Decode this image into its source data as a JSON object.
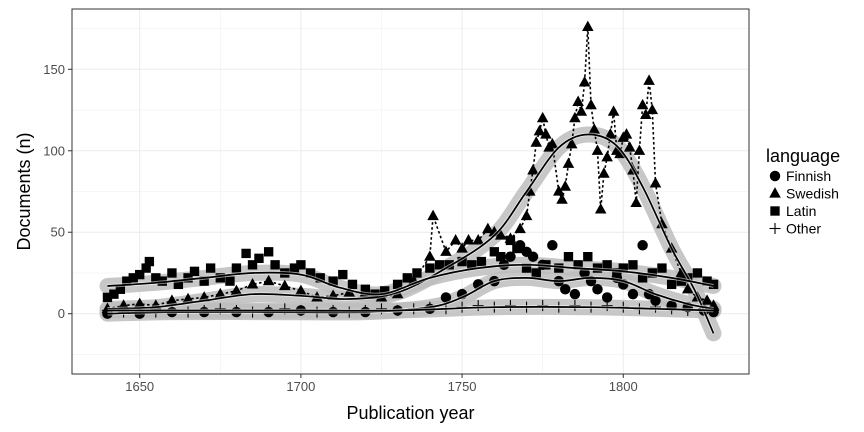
{
  "chart_data": {
    "type": "scatter",
    "xlabel": "Publication year",
    "ylabel": "Documents (n)",
    "xlim": [
      1629,
      1839
    ],
    "ylim": [
      -37,
      187
    ],
    "xticks": [
      1650,
      1700,
      1750,
      1800
    ],
    "yticks": [
      0,
      50,
      100,
      150
    ],
    "grid": true,
    "legend": {
      "title": "language",
      "position": "right",
      "entries": [
        "Finnish",
        "Swedish",
        "Latin",
        "Other"
      ]
    },
    "series": [
      {
        "name": "Swedish",
        "marker": "triangle",
        "connected": true,
        "line_style": "dotted",
        "points": [
          [
            1640,
            3
          ],
          [
            1645,
            5
          ],
          [
            1650,
            6
          ],
          [
            1655,
            5
          ],
          [
            1660,
            8
          ],
          [
            1665,
            9
          ],
          [
            1670,
            10
          ],
          [
            1675,
            12
          ],
          [
            1680,
            14
          ],
          [
            1685,
            18
          ],
          [
            1690,
            20
          ],
          [
            1695,
            17
          ],
          [
            1700,
            14
          ],
          [
            1705,
            10
          ],
          [
            1710,
            11
          ],
          [
            1715,
            13
          ],
          [
            1720,
            13
          ],
          [
            1725,
            10
          ],
          [
            1730,
            12
          ],
          [
            1735,
            20
          ],
          [
            1740,
            35
          ],
          [
            1741,
            60
          ],
          [
            1745,
            38
          ],
          [
            1748,
            45
          ],
          [
            1750,
            40
          ],
          [
            1752,
            45
          ],
          [
            1755,
            45
          ],
          [
            1758,
            52
          ],
          [
            1760,
            50
          ],
          [
            1762,
            48
          ],
          [
            1765,
            46
          ],
          [
            1768,
            52
          ],
          [
            1770,
            60
          ],
          [
            1771,
            75
          ],
          [
            1772,
            88
          ],
          [
            1773,
            105
          ],
          [
            1774,
            112
          ],
          [
            1775,
            120
          ],
          [
            1776,
            110
          ],
          [
            1777,
            102
          ],
          [
            1778,
            104
          ],
          [
            1780,
            75
          ],
          [
            1781,
            70
          ],
          [
            1782,
            78
          ],
          [
            1783,
            92
          ],
          [
            1784,
            104
          ],
          [
            1785,
            120
          ],
          [
            1786,
            130
          ],
          [
            1787,
            124
          ],
          [
            1788,
            142
          ],
          [
            1789,
            176
          ],
          [
            1790,
            128
          ],
          [
            1791,
            113
          ],
          [
            1792,
            100
          ],
          [
            1793,
            64
          ],
          [
            1794,
            86
          ],
          [
            1795,
            96
          ],
          [
            1796,
            110
          ],
          [
            1797,
            124
          ],
          [
            1798,
            100
          ],
          [
            1799,
            98
          ],
          [
            1800,
            108
          ],
          [
            1801,
            110
          ],
          [
            1802,
            102
          ],
          [
            1803,
            88
          ],
          [
            1804,
            68
          ],
          [
            1805,
            100
          ],
          [
            1806,
            128
          ],
          [
            1807,
            122
          ],
          [
            1808,
            143
          ],
          [
            1809,
            125
          ],
          [
            1810,
            80
          ],
          [
            1812,
            55
          ],
          [
            1815,
            40
          ],
          [
            1818,
            25
          ],
          [
            1820,
            15
          ],
          [
            1823,
            10
          ],
          [
            1826,
            8
          ],
          [
            1828,
            5
          ]
        ]
      },
      {
        "name": "Latin",
        "marker": "square",
        "connected": false,
        "points": [
          [
            1640,
            10
          ],
          [
            1642,
            12
          ],
          [
            1644,
            15
          ],
          [
            1646,
            20
          ],
          [
            1648,
            22
          ],
          [
            1650,
            24
          ],
          [
            1652,
            28
          ],
          [
            1653,
            32
          ],
          [
            1655,
            22
          ],
          [
            1657,
            20
          ],
          [
            1660,
            25
          ],
          [
            1662,
            18
          ],
          [
            1665,
            22
          ],
          [
            1667,
            26
          ],
          [
            1670,
            20
          ],
          [
            1672,
            28
          ],
          [
            1675,
            22
          ],
          [
            1678,
            20
          ],
          [
            1680,
            28
          ],
          [
            1683,
            37
          ],
          [
            1685,
            30
          ],
          [
            1687,
            34
          ],
          [
            1690,
            38
          ],
          [
            1692,
            30
          ],
          [
            1695,
            25
          ],
          [
            1698,
            28
          ],
          [
            1700,
            30
          ],
          [
            1703,
            25
          ],
          [
            1706,
            22
          ],
          [
            1710,
            20
          ],
          [
            1713,
            24
          ],
          [
            1716,
            18
          ],
          [
            1720,
            15
          ],
          [
            1723,
            12
          ],
          [
            1726,
            14
          ],
          [
            1730,
            18
          ],
          [
            1733,
            22
          ],
          [
            1736,
            25
          ],
          [
            1740,
            28
          ],
          [
            1743,
            30
          ],
          [
            1746,
            30
          ],
          [
            1750,
            32
          ],
          [
            1753,
            30
          ],
          [
            1756,
            32
          ],
          [
            1760,
            38
          ],
          [
            1762,
            35
          ],
          [
            1765,
            45
          ],
          [
            1767,
            40
          ],
          [
            1770,
            28
          ],
          [
            1773,
            25
          ],
          [
            1776,
            30
          ],
          [
            1780,
            28
          ],
          [
            1783,
            35
          ],
          [
            1786,
            30
          ],
          [
            1789,
            35
          ],
          [
            1792,
            28
          ],
          [
            1795,
            30
          ],
          [
            1798,
            25
          ],
          [
            1800,
            28
          ],
          [
            1803,
            30
          ],
          [
            1806,
            22
          ],
          [
            1809,
            25
          ],
          [
            1812,
            28
          ],
          [
            1815,
            18
          ],
          [
            1818,
            20
          ],
          [
            1820,
            22
          ],
          [
            1823,
            25
          ],
          [
            1826,
            20
          ],
          [
            1828,
            18
          ]
        ]
      },
      {
        "name": "Finnish",
        "marker": "circle",
        "connected": false,
        "points": [
          [
            1640,
            0
          ],
          [
            1650,
            0
          ],
          [
            1660,
            1
          ],
          [
            1670,
            1
          ],
          [
            1680,
            1
          ],
          [
            1690,
            1
          ],
          [
            1700,
            2
          ],
          [
            1710,
            1
          ],
          [
            1720,
            1
          ],
          [
            1730,
            2
          ],
          [
            1740,
            3
          ],
          [
            1745,
            10
          ],
          [
            1750,
            12
          ],
          [
            1755,
            18
          ],
          [
            1760,
            20
          ],
          [
            1763,
            30
          ],
          [
            1765,
            35
          ],
          [
            1768,
            42
          ],
          [
            1770,
            38
          ],
          [
            1772,
            35
          ],
          [
            1775,
            30
          ],
          [
            1778,
            42
          ],
          [
            1780,
            20
          ],
          [
            1782,
            15
          ],
          [
            1785,
            12
          ],
          [
            1788,
            25
          ],
          [
            1790,
            20
          ],
          [
            1792,
            15
          ],
          [
            1795,
            10
          ],
          [
            1798,
            22
          ],
          [
            1800,
            18
          ],
          [
            1803,
            12
          ],
          [
            1806,
            42
          ],
          [
            1808,
            12
          ],
          [
            1810,
            8
          ],
          [
            1815,
            5
          ],
          [
            1820,
            4
          ],
          [
            1825,
            2
          ],
          [
            1828,
            1
          ]
        ]
      },
      {
        "name": "Other",
        "marker": "cross",
        "connected": false,
        "points": [
          [
            1640,
            2
          ],
          [
            1645,
            1
          ],
          [
            1650,
            2
          ],
          [
            1655,
            1
          ],
          [
            1660,
            2
          ],
          [
            1665,
            1
          ],
          [
            1670,
            2
          ],
          [
            1675,
            3
          ],
          [
            1680,
            2
          ],
          [
            1685,
            1
          ],
          [
            1690,
            2
          ],
          [
            1695,
            3
          ],
          [
            1700,
            2
          ],
          [
            1705,
            1
          ],
          [
            1710,
            2
          ],
          [
            1715,
            1
          ],
          [
            1720,
            2
          ],
          [
            1725,
            3
          ],
          [
            1730,
            2
          ],
          [
            1735,
            3
          ],
          [
            1740,
            4
          ],
          [
            1745,
            3
          ],
          [
            1750,
            4
          ],
          [
            1755,
            5
          ],
          [
            1760,
            4
          ],
          [
            1765,
            5
          ],
          [
            1770,
            4
          ],
          [
            1775,
            5
          ],
          [
            1780,
            4
          ],
          [
            1785,
            5
          ],
          [
            1790,
            4
          ],
          [
            1795,
            5
          ],
          [
            1800,
            4
          ],
          [
            1805,
            3
          ],
          [
            1810,
            4
          ],
          [
            1815,
            3
          ],
          [
            1820,
            2
          ],
          [
            1825,
            3
          ],
          [
            1828,
            2
          ]
        ]
      }
    ],
    "smooth_fits": [
      {
        "color": "#000000",
        "points": [
          [
            1640,
            3
          ],
          [
            1655,
            4
          ],
          [
            1670,
            8
          ],
          [
            1685,
            12
          ],
          [
            1700,
            11
          ],
          [
            1715,
            9
          ],
          [
            1730,
            13
          ],
          [
            1745,
            28
          ],
          [
            1760,
            48
          ],
          [
            1770,
            75
          ],
          [
            1780,
            102
          ],
          [
            1789,
            110
          ],
          [
            1798,
            103
          ],
          [
            1806,
            78
          ],
          [
            1815,
            40
          ],
          [
            1822,
            15
          ],
          [
            1828,
            -12
          ]
        ]
      },
      {
        "color": "#000000",
        "points": [
          [
            1640,
            17
          ],
          [
            1655,
            19
          ],
          [
            1670,
            22
          ],
          [
            1685,
            25
          ],
          [
            1700,
            24
          ],
          [
            1712,
            16
          ],
          [
            1725,
            12
          ],
          [
            1740,
            22
          ],
          [
            1755,
            28
          ],
          [
            1770,
            30
          ],
          [
            1785,
            28
          ],
          [
            1800,
            26
          ],
          [
            1815,
            22
          ],
          [
            1828,
            17
          ]
        ]
      },
      {
        "color": "#000000",
        "points": [
          [
            1640,
            0
          ],
          [
            1660,
            1
          ],
          [
            1690,
            1
          ],
          [
            1720,
            1
          ],
          [
            1740,
            4
          ],
          [
            1750,
            10
          ],
          [
            1760,
            20
          ],
          [
            1770,
            22
          ],
          [
            1780,
            20
          ],
          [
            1790,
            22
          ],
          [
            1800,
            20
          ],
          [
            1810,
            12
          ],
          [
            1820,
            6
          ],
          [
            1828,
            3
          ]
        ]
      },
      {
        "color": "#000000",
        "points": [
          [
            1640,
            2
          ],
          [
            1670,
            2
          ],
          [
            1700,
            2
          ],
          [
            1730,
            2
          ],
          [
            1760,
            4
          ],
          [
            1790,
            4
          ],
          [
            1810,
            3
          ],
          [
            1828,
            2
          ]
        ]
      }
    ]
  }
}
